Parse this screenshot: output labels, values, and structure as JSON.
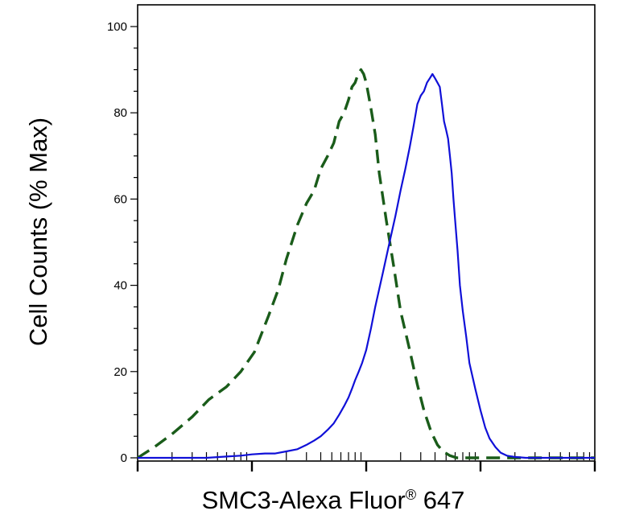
{
  "chart_data": {
    "type": "line",
    "title": "",
    "xlabel": "SMC3-Alexa Fluor",
    "xlabel_mark": "®",
    "xlabel_suffix": " 647",
    "ylabel": "Cell Counts (% Max)",
    "x_scale": "log",
    "xlim": [
      1,
      10000
    ],
    "ylim": [
      0,
      105
    ],
    "y_ticks": [
      0,
      20,
      40,
      60,
      80,
      100
    ],
    "y_tick_labels": [
      "0",
      "20",
      "40",
      "60",
      "80",
      "100"
    ],
    "x_tick_labels_shown": false,
    "grid": false,
    "legend": "none",
    "series": [
      {
        "color": "#1a5c1a",
        "dash": "dashed",
        "x": [
          1.0,
          1.4,
          2.0,
          3.0,
          4.2,
          6.0,
          8.0,
          10.5,
          14,
          17,
          20,
          25,
          30,
          35,
          40,
          46,
          52,
          58,
          64,
          70,
          75,
          80,
          85,
          90,
          95,
          100,
          105,
          110,
          120,
          130,
          150,
          175,
          200,
          240,
          280,
          320,
          370,
          420,
          470,
          540,
          620,
          700,
          800,
          1000,
          1500,
          2000,
          3000,
          10000
        ],
        "y": [
          0,
          2.5,
          5.5,
          9.5,
          13.5,
          16.5,
          20,
          24.5,
          33,
          39,
          46,
          54,
          59,
          62,
          67,
          70,
          73,
          78,
          80,
          83,
          86,
          87,
          89,
          90,
          89,
          87,
          84,
          81,
          75,
          66,
          55,
          44,
          34,
          25,
          17,
          11,
          6,
          3,
          1.5,
          0.5,
          0,
          0,
          0,
          0,
          0,
          0,
          0,
          0
        ]
      },
      {
        "color": "#1010d8",
        "dash": "solid",
        "x": [
          1.0,
          2.0,
          4.0,
          6.0,
          8.0,
          10,
          13,
          16,
          20,
          25,
          30,
          35,
          40,
          46,
          52,
          58,
          64,
          70,
          75,
          80,
          86,
          92,
          100,
          110,
          120,
          140,
          160,
          180,
          200,
          220,
          240,
          260,
          280,
          300,
          320,
          340,
          360,
          380,
          400,
          420,
          440,
          460,
          480,
          500,
          520,
          540,
          560,
          580,
          600,
          630,
          660,
          700,
          750,
          800,
          900,
          1000,
          1100,
          1200,
          1350,
          1500,
          1700,
          2000,
          2500,
          3000,
          4000,
          6000,
          10000
        ],
        "y": [
          0,
          0,
          0,
          0.3,
          0.5,
          0.8,
          1,
          1,
          1.5,
          2,
          3,
          4,
          5,
          6.5,
          8,
          10,
          12,
          14,
          16,
          18,
          20,
          22,
          25,
          30,
          35,
          43,
          50,
          56,
          62,
          67,
          72,
          77,
          82,
          84,
          85,
          87,
          88,
          89,
          88,
          87,
          86,
          82,
          78,
          76,
          74,
          70,
          66,
          60,
          55,
          48,
          40,
          34,
          28,
          22,
          16,
          11,
          7,
          4.5,
          2.5,
          1.2,
          0.5,
          0.2,
          0,
          0,
          0,
          0,
          0
        ]
      }
    ]
  }
}
